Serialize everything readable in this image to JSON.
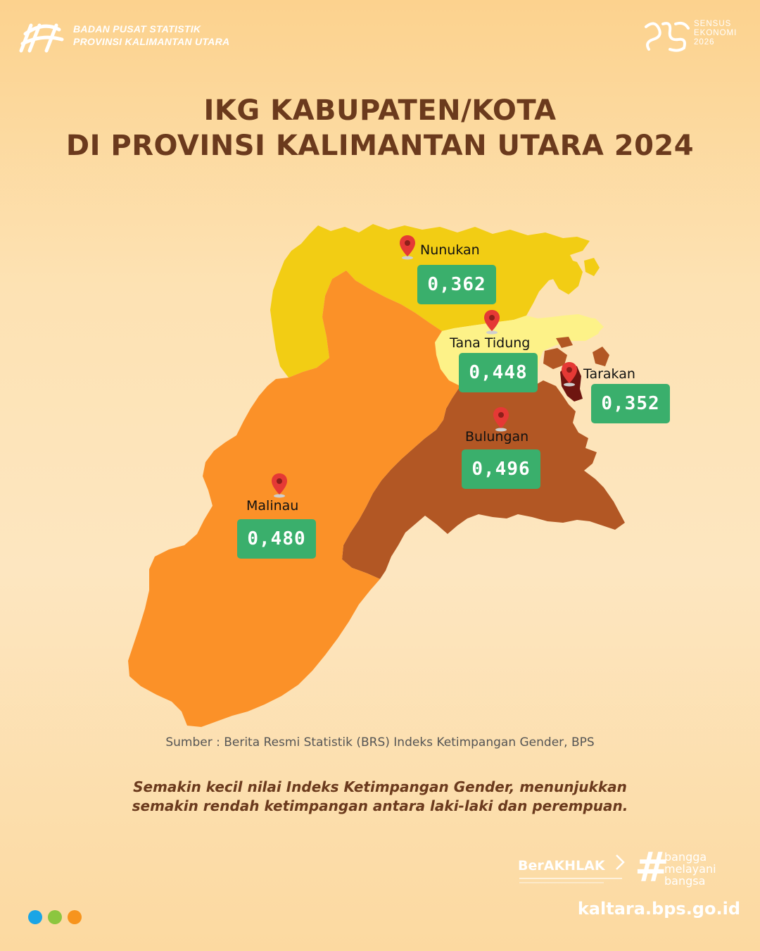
{
  "header": {
    "org_line1": "BADAN PUSAT STATISTIK",
    "org_line2": "PROVINSI KALIMANTAN UTARA",
    "census_line1": "SENSUS",
    "census_line2": "EKONOMI",
    "census_line3": "2026"
  },
  "title": {
    "line1": "IKG KABUPATEN/KOTA",
    "line2": "DI PROVINSI KALIMANTAN UTARA 2024"
  },
  "regions": [
    {
      "name": "Nunukan",
      "value": "0,362",
      "color": "#f2cd14"
    },
    {
      "name": "Tana Tidung",
      "value": "0,448",
      "color": "#fdf288"
    },
    {
      "name": "Tarakan",
      "value": "0,352",
      "color": "#6e1510"
    },
    {
      "name": "Bulungan",
      "value": "0,496",
      "color": "#b25724"
    },
    {
      "name": "Malinau",
      "value": "0,480",
      "color": "#fb9128"
    }
  ],
  "source": "Sumber : Berita Resmi Statistik (BRS) Indeks Ketimpangan Gender, BPS",
  "note": {
    "line1": "Semakin kecil nilai Indeks Ketimpangan Gender, menunjukkan",
    "line2": "semakin rendah ketimpangan antara laki-laki dan perempuan."
  },
  "footer": {
    "berakhlak": "BerAKHLAK",
    "bangga_1": "bangga",
    "bangga_2": "melayani",
    "bangga_3": "bangsa",
    "website": "kaltara.bps.go.id",
    "dot_colors": [
      "#1ba5e6",
      "#8cc63f",
      "#f7941d"
    ]
  },
  "colors": {
    "title": "#6b3a1d",
    "value_box": "#3aaf6c",
    "pin": "#e53935"
  }
}
